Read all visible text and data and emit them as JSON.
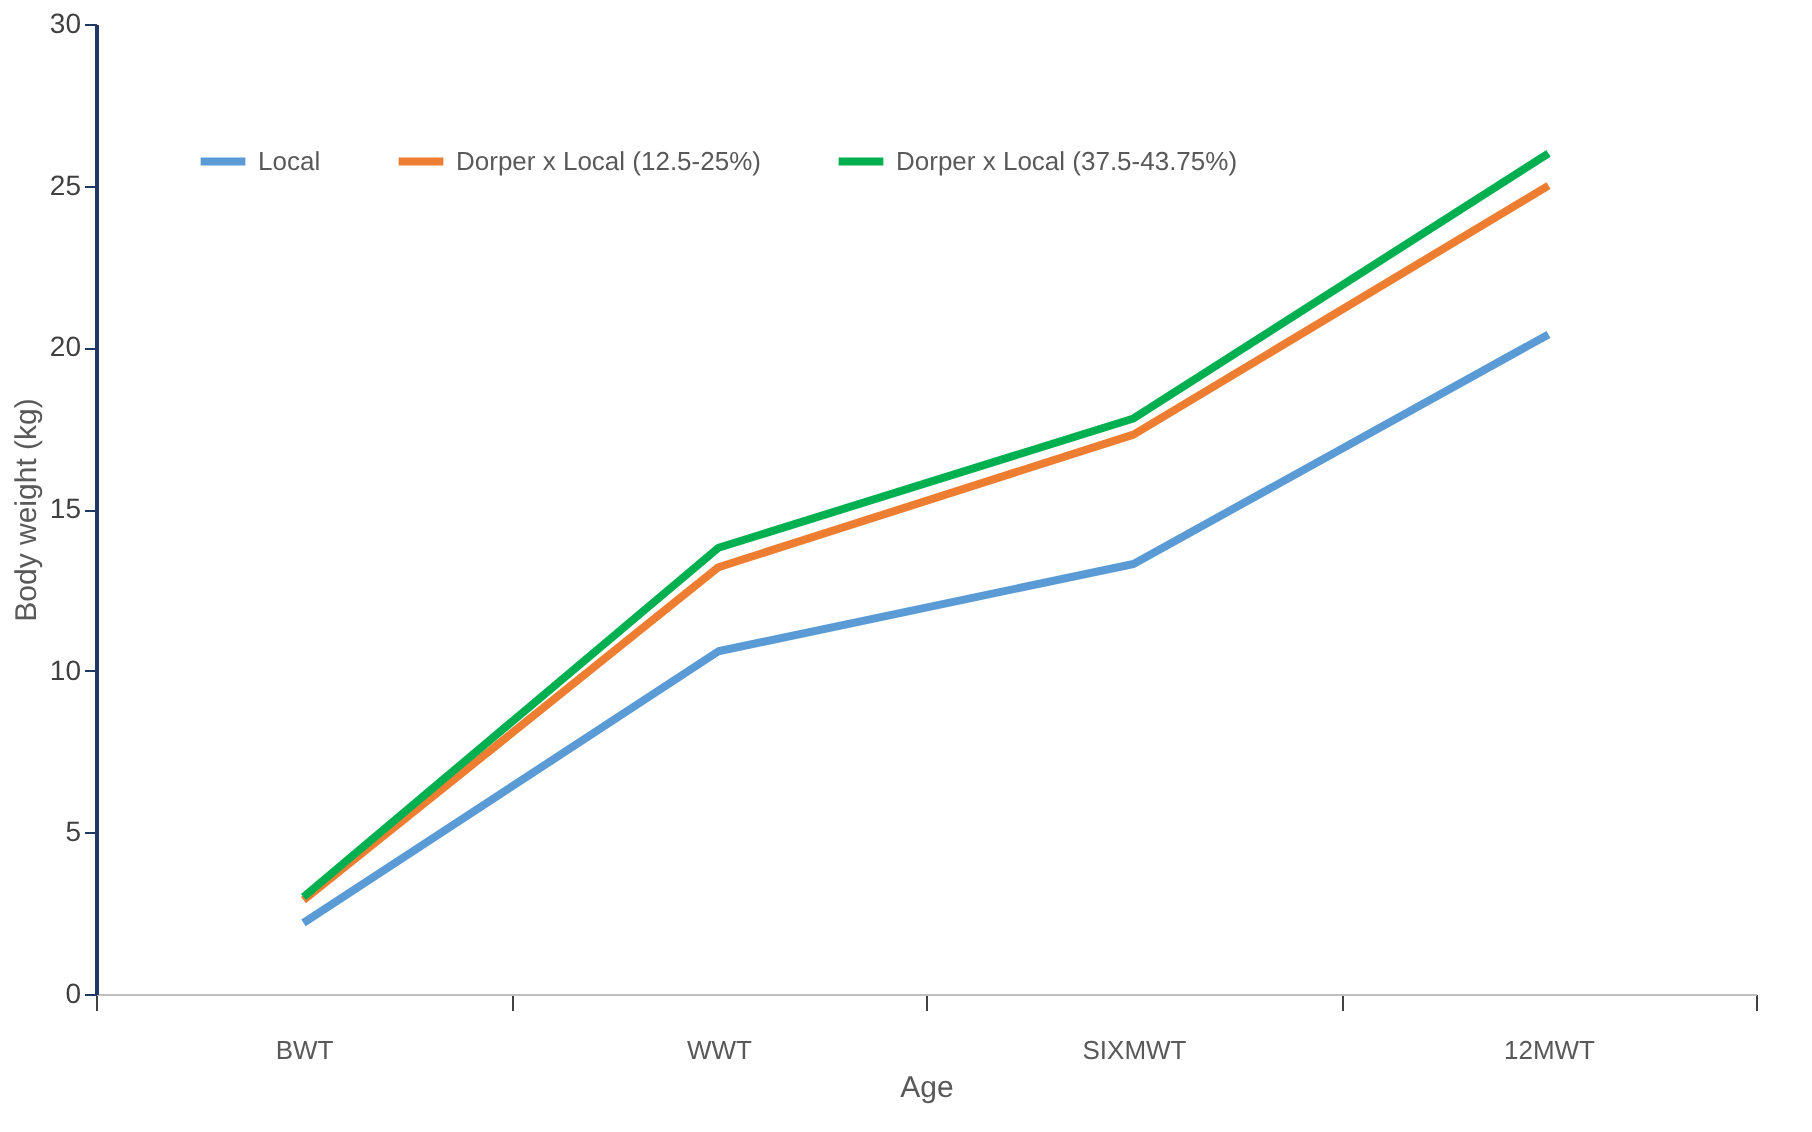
{
  "chart_data": {
    "type": "line",
    "xlabel": "Age",
    "ylabel": "Body weight (kg)",
    "categories": [
      "BWT",
      "WWT",
      "SIXMWT",
      "12MWT"
    ],
    "series": [
      {
        "name": "Local",
        "color": "#5b9bd5",
        "values": [
          2.2,
          10.6,
          13.3,
          20.4
        ]
      },
      {
        "name": "Dorper x Local (12.5-25%)",
        "color": "#ed7d31",
        "values": [
          2.9,
          13.2,
          17.3,
          25.0
        ]
      },
      {
        "name": "Dorper x Local (37.5-43.75%)",
        "color": "#00b050",
        "values": [
          3.0,
          13.8,
          17.8,
          26.0
        ]
      }
    ],
    "ylim": [
      0,
      30
    ],
    "yticks": [
      0,
      5,
      10,
      15,
      20,
      25,
      30
    ],
    "grid": false,
    "legend": "top",
    "marker": "none",
    "line_style": "solid"
  }
}
